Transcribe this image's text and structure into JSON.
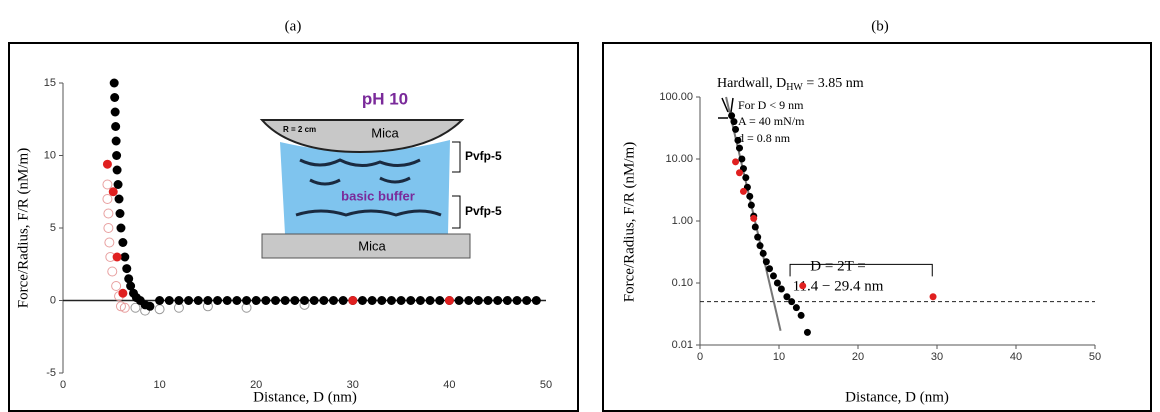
{
  "chart_data": [
    {
      "type": "scatter",
      "panel_label": "(a)",
      "x_label": "Distance, D (nm)",
      "y_label": "Force/Radius, F/R (nM/m)",
      "xlim": [
        0,
        50
      ],
      "ylim": [
        -5,
        15
      ],
      "xticks": [
        0,
        10,
        20,
        30,
        40,
        50
      ],
      "yticks": [
        -5,
        0,
        5,
        10,
        15
      ],
      "zero_line": 0,
      "inset": {
        "ph": "pH 10",
        "radius": "R = 2 cm",
        "mica_top": "Mica",
        "buffer": "basic buffer",
        "mica_bottom": "Mica",
        "layers": [
          "Pvfp-5",
          "Pvfp-5"
        ]
      },
      "series": [
        {
          "color": "#e8a0a0",
          "marker": "open",
          "x": [
            4.6,
            4.6,
            4.7,
            4.7,
            4.8,
            4.9,
            5.1,
            5.5,
            5.8,
            6.0,
            6.4
          ],
          "values": [
            8,
            7,
            6,
            5,
            4,
            3,
            2,
            1,
            0.3,
            -0.4,
            -0.5
          ]
        },
        {
          "color": "#999999",
          "marker": "open",
          "x": [
            7.5,
            8.5,
            10,
            12,
            15,
            19,
            25
          ],
          "values": [
            -0.5,
            -0.7,
            -0.6,
            -0.5,
            -0.4,
            -0.5,
            -0.3
          ]
        },
        {
          "color": "#000000",
          "marker": "filled",
          "x": [
            5.3,
            5.35,
            5.4,
            5.45,
            5.5,
            5.55,
            5.6,
            5.7,
            5.8,
            5.9,
            6.0,
            6.2,
            6.4,
            6.6,
            6.8,
            7.0,
            7.3,
            7.6,
            8.0,
            8.5,
            9,
            10,
            11,
            12,
            13,
            14,
            15,
            16,
            17,
            18,
            19,
            20,
            21,
            22,
            23,
            24,
            25,
            26,
            27,
            28,
            29,
            30,
            31,
            32,
            33,
            34,
            35,
            36,
            37,
            38,
            39,
            40,
            41,
            42,
            43,
            44,
            45,
            46,
            47,
            48,
            49
          ],
          "values": [
            15,
            14,
            13,
            12,
            11,
            10,
            9,
            8,
            7,
            6,
            5,
            4,
            3,
            2.2,
            1.5,
            1,
            0.5,
            0.2,
            0,
            -0.3,
            -0.4,
            0,
            0,
            0,
            0,
            0,
            0,
            0,
            0,
            0,
            0,
            0,
            0,
            0,
            0,
            0,
            0,
            0,
            0,
            0,
            0,
            0,
            0,
            0,
            0,
            0,
            0,
            0,
            0,
            0,
            0,
            0,
            0,
            0,
            0,
            0,
            0,
            0,
            0,
            0,
            0
          ]
        },
        {
          "color": "#e02020",
          "marker": "filled",
          "x": [
            4.6,
            5.2,
            5.6,
            6.2,
            30,
            40
          ],
          "values": [
            9.4,
            7.5,
            3,
            0.5,
            0,
            0
          ]
        }
      ]
    },
    {
      "type": "scatter",
      "panel_label": "(b)",
      "x_label": "Distance, D (nm)",
      "y_label": "Force/Radius, F/R (nM/m)",
      "log_y": true,
      "xlim": [
        0,
        50
      ],
      "ylim": [
        0.01,
        100
      ],
      "xticks": [
        0,
        10,
        20,
        30,
        40,
        50
      ],
      "yticks": [
        {
          "value": 0.01,
          "label": "0.01"
        },
        {
          "value": 0.1,
          "label": "0.10"
        },
        {
          "value": 1,
          "label": "1.00"
        },
        {
          "value": 10,
          "label": "10.00"
        },
        {
          "value": 100,
          "label": "100.00"
        }
      ],
      "dashed_line": 0.05,
      "fit_line": {
        "x": [
          3.3,
          10.2
        ],
        "values": [
          100,
          0.017
        ]
      },
      "bracket": {
        "x": [
          11.4,
          29.4
        ],
        "value": 0.2
      },
      "annotations": {
        "hardwall": [
          "Hardwall, D",
          "HW",
          " = 3.85 nm"
        ],
        "fit": [
          "For D < 9 nm",
          "A = 40 mN/m",
          "d = 0.8 nm"
        ],
        "range": [
          "D = 2T =",
          "11.4 − 29.4 nm"
        ]
      },
      "series": [
        {
          "color": "#000000",
          "marker": "filled",
          "x": [
            4,
            4.3,
            4.5,
            4.8,
            5,
            5.3,
            5.5,
            5.8,
            6,
            6.3,
            6.5,
            6.8,
            7,
            7.3,
            7.6,
            8,
            8.4,
            8.8,
            9.3,
            9.8,
            10.3,
            11,
            11.6,
            12.2,
            12.8,
            13.6
          ],
          "values": [
            50,
            40,
            30,
            20,
            15,
            10,
            7,
            5,
            3.5,
            2.5,
            1.8,
            1.2,
            0.8,
            0.55,
            0.4,
            0.3,
            0.22,
            0.17,
            0.13,
            0.1,
            0.08,
            0.06,
            0.05,
            0.04,
            0.03,
            0.016
          ]
        },
        {
          "color": "#e02020",
          "marker": "filled",
          "x": [
            4.5,
            5,
            5.5,
            6.8,
            13,
            29.5
          ],
          "values": [
            9,
            6,
            3,
            1.1,
            0.09,
            0.06
          ]
        }
      ]
    }
  ]
}
